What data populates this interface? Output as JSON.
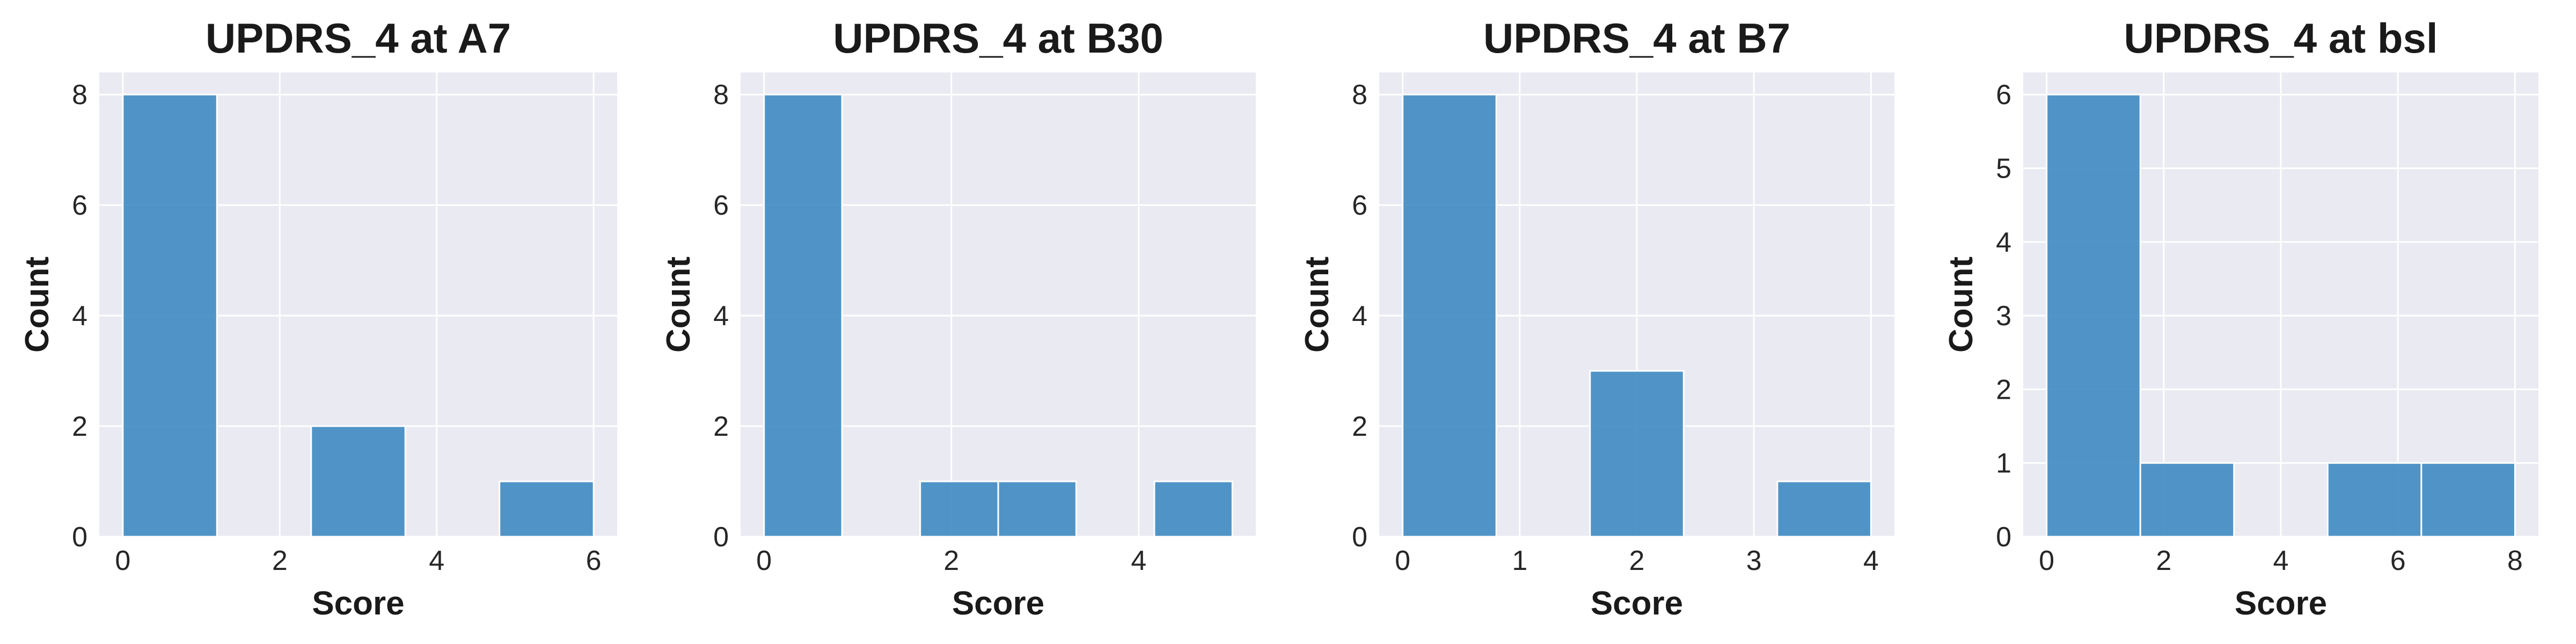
{
  "chart_data": [
    {
      "type": "bar",
      "title": "UPDRS_4 at A7",
      "xlabel": "Score",
      "ylabel": "Count",
      "xlim": [
        -0.3,
        6.3
      ],
      "ylim": [
        0,
        8.4
      ],
      "xticks": [
        0,
        2,
        4,
        6
      ],
      "yticks": [
        0,
        2,
        4,
        6,
        8
      ],
      "bins": [
        {
          "x0": 0,
          "x1": 1.2,
          "count": 8
        },
        {
          "x0": 2.4,
          "x1": 3.6,
          "count": 2
        },
        {
          "x0": 4.8,
          "x1": 6.0,
          "count": 1
        }
      ],
      "bar_color": "#3a87c0",
      "grid": true
    },
    {
      "type": "bar",
      "title": "UPDRS_4 at B30",
      "xlabel": "Score",
      "ylabel": "Count",
      "xlim": [
        -0.25,
        5.25
      ],
      "ylim": [
        0,
        8.4
      ],
      "xticks": [
        0,
        2,
        4
      ],
      "yticks": [
        0,
        2,
        4,
        6,
        8
      ],
      "bins": [
        {
          "x0": 0,
          "x1": 0.833,
          "count": 8
        },
        {
          "x0": 1.667,
          "x1": 2.5,
          "count": 1
        },
        {
          "x0": 2.5,
          "x1": 3.333,
          "count": 1
        },
        {
          "x0": 4.167,
          "x1": 5.0,
          "count": 1
        }
      ],
      "bar_color": "#3a87c0",
      "grid": true
    },
    {
      "type": "bar",
      "title": "UPDRS_4 at B7",
      "xlabel": "Score",
      "ylabel": "Count",
      "xlim": [
        -0.2,
        4.2
      ],
      "ylim": [
        0,
        8.4
      ],
      "xticks": [
        0,
        1,
        2,
        3,
        4
      ],
      "yticks": [
        0,
        2,
        4,
        6,
        8
      ],
      "bins": [
        {
          "x0": 0,
          "x1": 0.8,
          "count": 8
        },
        {
          "x0": 1.6,
          "x1": 2.4,
          "count": 3
        },
        {
          "x0": 3.2,
          "x1": 4.0,
          "count": 1
        }
      ],
      "bar_color": "#3a87c0",
      "grid": true
    },
    {
      "type": "bar",
      "title": "UPDRS_4 at bsl",
      "xlabel": "Score",
      "ylabel": "Count",
      "xlim": [
        -0.4,
        8.4
      ],
      "ylim": [
        0,
        6.3
      ],
      "xticks": [
        0,
        2,
        4,
        6,
        8
      ],
      "yticks": [
        0,
        1,
        2,
        3,
        4,
        5,
        6
      ],
      "bins": [
        {
          "x0": 0,
          "x1": 1.6,
          "count": 6
        },
        {
          "x0": 1.6,
          "x1": 3.2,
          "count": 1
        },
        {
          "x0": 4.8,
          "x1": 6.4,
          "count": 1
        },
        {
          "x0": 6.4,
          "x1": 8.0,
          "count": 1
        }
      ],
      "bar_color": "#3a87c0",
      "grid": true
    }
  ]
}
